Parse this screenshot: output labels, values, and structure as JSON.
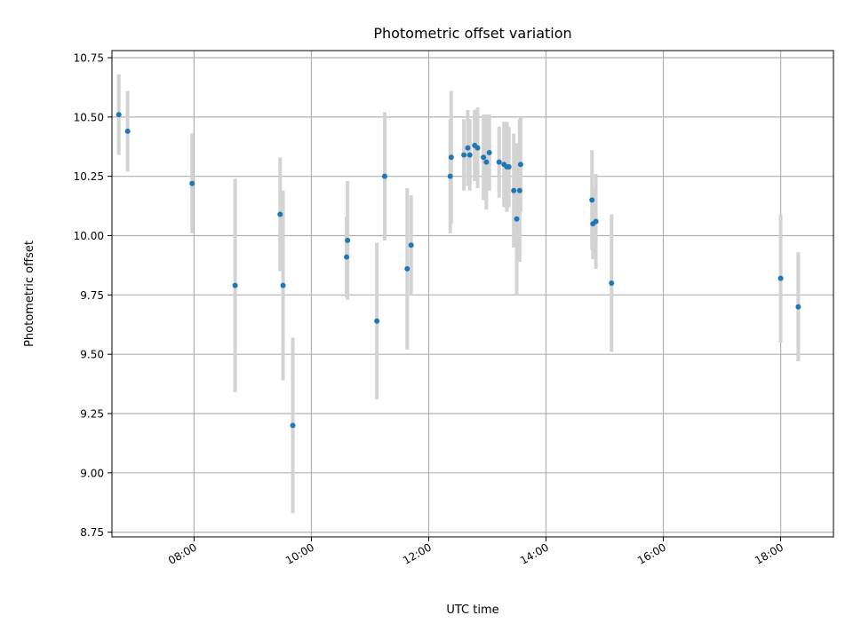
{
  "chart_data": {
    "type": "scatter",
    "title": "Photometric offset variation",
    "xlabel": "UTC time",
    "ylabel": "Photometric offset",
    "x_axis_type": "time",
    "xlim": [
      "06:36",
      "18:54"
    ],
    "ylim": [
      8.73,
      10.78
    ],
    "grid": true,
    "xticks": [
      "08:00",
      "10:00",
      "12:00",
      "14:00",
      "16:00",
      "18:00"
    ],
    "yticks": [
      "8.75",
      "9.00",
      "9.25",
      "9.50",
      "9.75",
      "10.00",
      "10.25",
      "10.50",
      "10.75"
    ],
    "colors": {
      "point": "#1f77b4",
      "errorbar": "#d3d3d3",
      "grid": "#b0b0b0"
    },
    "points": [
      {
        "x": "06:43",
        "y": 10.51,
        "err": 0.17
      },
      {
        "x": "06:52",
        "y": 10.44,
        "err": 0.17
      },
      {
        "x": "07:58",
        "y": 10.22,
        "err": 0.21
      },
      {
        "x": "08:42",
        "y": 9.79,
        "err": 0.45
      },
      {
        "x": "09:28",
        "y": 10.09,
        "err": 0.24
      },
      {
        "x": "09:31",
        "y": 9.79,
        "err": 0.4
      },
      {
        "x": "09:41",
        "y": 9.2,
        "err": 0.37
      },
      {
        "x": "10:36",
        "y": 9.91,
        "err": 0.17
      },
      {
        "x": "10:37",
        "y": 9.98,
        "err": 0.25
      },
      {
        "x": "11:07",
        "y": 9.64,
        "err": 0.33
      },
      {
        "x": "11:15",
        "y": 10.25,
        "err": 0.27
      },
      {
        "x": "11:38",
        "y": 9.86,
        "err": 0.34
      },
      {
        "x": "11:42",
        "y": 9.96,
        "err": 0.21
      },
      {
        "x": "12:22",
        "y": 10.25,
        "err": 0.24
      },
      {
        "x": "12:23",
        "y": 10.33,
        "err": 0.28
      },
      {
        "x": "12:36",
        "y": 10.34,
        "err": 0.15
      },
      {
        "x": "12:40",
        "y": 10.37,
        "err": 0.16
      },
      {
        "x": "12:42",
        "y": 10.34,
        "err": 0.15
      },
      {
        "x": "12:47",
        "y": 10.38,
        "err": 0.15
      },
      {
        "x": "12:50",
        "y": 10.37,
        "err": 0.17
      },
      {
        "x": "12:56",
        "y": 10.33,
        "err": 0.18
      },
      {
        "x": "12:59",
        "y": 10.31,
        "err": 0.2
      },
      {
        "x": "13:02",
        "y": 10.35,
        "err": 0.16
      },
      {
        "x": "13:12",
        "y": 10.31,
        "err": 0.15
      },
      {
        "x": "13:17",
        "y": 10.3,
        "err": 0.18
      },
      {
        "x": "13:20",
        "y": 10.29,
        "err": 0.19
      },
      {
        "x": "13:22",
        "y": 10.29,
        "err": 0.17
      },
      {
        "x": "13:27",
        "y": 10.19,
        "err": 0.24
      },
      {
        "x": "13:30",
        "y": 10.07,
        "err": 0.32
      },
      {
        "x": "13:33",
        "y": 10.19,
        "err": 0.3
      },
      {
        "x": "13:34",
        "y": 10.3,
        "err": 0.2
      },
      {
        "x": "14:47",
        "y": 10.15,
        "err": 0.21
      },
      {
        "x": "14:48",
        "y": 10.05,
        "err": 0.15
      },
      {
        "x": "14:51",
        "y": 10.06,
        "err": 0.2
      },
      {
        "x": "15:07",
        "y": 9.8,
        "err": 0.29
      },
      {
        "x": "18:00",
        "y": 9.82,
        "err": 0.27
      },
      {
        "x": "18:18",
        "y": 9.7,
        "err": 0.23
      }
    ]
  }
}
